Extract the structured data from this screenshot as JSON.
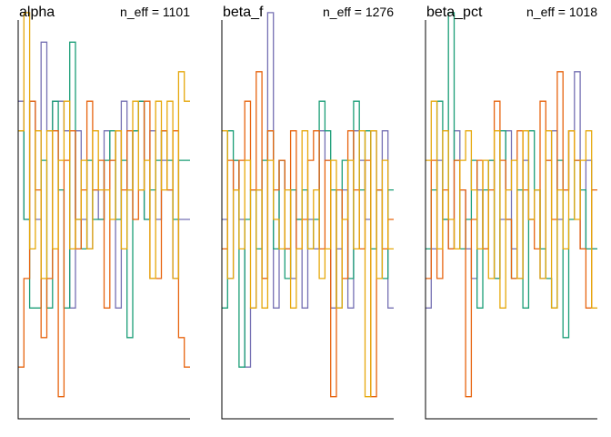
{
  "chart_data": [
    {
      "type": "line",
      "style": "step",
      "title": "alpha",
      "annotation": "n_eff = 1101",
      "xlim": [
        0.5,
        30.5
      ],
      "ylim": [
        -1.35,
        1.35
      ],
      "x": [
        1,
        2,
        3,
        4,
        5,
        6,
        7,
        8,
        9,
        10,
        11,
        12,
        13,
        14,
        15,
        16,
        17,
        18,
        19,
        20,
        21,
        22,
        23,
        24,
        25,
        26,
        27,
        28,
        29,
        30
      ],
      "series": [
        {
          "color": "#7570b3",
          "values": [
            0.8,
            0.0,
            0.8,
            0.0,
            1.2,
            0.6,
            0.8,
            0.8,
            0.6,
            -0.6,
            0.6,
            0.0,
            -0.2,
            0.2,
            0.0,
            0.6,
            0.4,
            -0.6,
            0.8,
            0.2,
            0.6,
            0.8,
            0.0,
            0.6,
            0.0,
            0.4,
            0.2,
            -0.4,
            0.0,
            0.0
          ]
        },
        {
          "color": "#1b9e77",
          "values": [
            0.6,
            0.0,
            -0.6,
            -0.6,
            0.4,
            -0.6,
            0.8,
            0.2,
            -0.6,
            1.2,
            0.0,
            -0.2,
            0.4,
            0.0,
            0.0,
            0.4,
            0.6,
            0.0,
            0.4,
            -0.8,
            0.6,
            0.8,
            0.0,
            0.2,
            0.4,
            0.6,
            0.4,
            0.0,
            0.4,
            0.4
          ]
        },
        {
          "color": "#e7640f",
          "values": [
            -1.0,
            -0.4,
            0.8,
            0.2,
            -0.8,
            -0.4,
            0.6,
            -1.2,
            0.4,
            0.6,
            -0.2,
            0.2,
            0.8,
            0.2,
            0.4,
            -0.6,
            0.4,
            0.6,
            0.2,
            0.6,
            0.0,
            0.2,
            0.8,
            -0.4,
            -0.4,
            0.6,
            0.2,
            0.6,
            -0.8,
            -1.0
          ]
        },
        {
          "color": "#e6a80c",
          "values": [
            0.6,
            1.4,
            -0.2,
            0.6,
            -0.4,
            0.6,
            -0.2,
            0.4,
            0.8,
            -0.2,
            0.0,
            0.4,
            -0.2,
            0.6,
            0.2,
            0.2,
            0.0,
            0.6,
            -0.2,
            0.2,
            0.8,
            0.2,
            0.4,
            -0.4,
            0.8,
            0.2,
            0.8,
            -0.4,
            1.0,
            0.8
          ]
        }
      ]
    },
    {
      "type": "line",
      "style": "step",
      "title": "beta_f",
      "annotation": "n_eff = 1276",
      "xlim": [
        0.5,
        30.5
      ],
      "ylim": [
        -1.35,
        1.35
      ],
      "x": [
        1,
        2,
        3,
        4,
        5,
        6,
        7,
        8,
        9,
        10,
        11,
        12,
        13,
        14,
        15,
        16,
        17,
        18,
        19,
        20,
        21,
        22,
        23,
        24,
        25,
        26,
        27,
        28,
        29,
        30
      ],
      "series": [
        {
          "color": "#7570b3",
          "values": [
            0.0,
            -0.4,
            0.4,
            0.0,
            -1.0,
            -0.6,
            0.2,
            -0.4,
            1.4,
            -0.6,
            0.4,
            -0.2,
            -0.4,
            0.0,
            -0.6,
            0.0,
            -0.2,
            0.6,
            0.4,
            -0.6,
            -0.2,
            0.2,
            -0.6,
            0.6,
            0.4,
            0.0,
            0.6,
            0.2,
            0.6,
            -0.6
          ]
        },
        {
          "color": "#1b9e77",
          "values": [
            -0.6,
            0.6,
            0.4,
            -1.0,
            0.0,
            0.2,
            -0.2,
            0.4,
            0.6,
            -0.2,
            0.4,
            -0.4,
            0.2,
            0.0,
            0.2,
            -0.2,
            0.0,
            0.8,
            0.6,
            0.2,
            -0.6,
            0.4,
            -0.4,
            0.8,
            0.2,
            0.6,
            -0.2,
            0.2,
            -0.4,
            0.2
          ]
        },
        {
          "color": "#e7640f",
          "values": [
            -0.2,
            0.4,
            0.2,
            0.4,
            0.8,
            0.2,
            1.0,
            -0.4,
            0.6,
            0.2,
            0.4,
            -0.2,
            0.6,
            -0.2,
            0.0,
            0.4,
            0.6,
            -0.2,
            0.4,
            -1.2,
            0.2,
            -0.4,
            0.6,
            0.2,
            -0.2,
            0.4,
            -1.2,
            0.2,
            -0.2,
            0.0
          ]
        },
        {
          "color": "#e6a80c",
          "values": [
            0.6,
            -0.4,
            0.2,
            -0.2,
            0.4,
            -0.6,
            0.2,
            -0.6,
            0.4,
            0.0,
            -0.2,
            0.2,
            -0.6,
            -0.2,
            0.6,
            -0.2,
            0.2,
            -0.4,
            -0.2,
            0.4,
            -0.6,
            0.0,
            0.4,
            -0.2,
            0.6,
            -1.2,
            0.6,
            -0.4,
            0.4,
            -0.2
          ]
        }
      ]
    },
    {
      "type": "line",
      "style": "step",
      "title": "beta_pct",
      "annotation": "n_eff = 1018",
      "xlim": [
        0.5,
        30.5
      ],
      "ylim": [
        -1.35,
        1.35
      ],
      "x": [
        1,
        2,
        3,
        4,
        5,
        6,
        7,
        8,
        9,
        10,
        11,
        12,
        13,
        14,
        15,
        16,
        17,
        18,
        19,
        20,
        21,
        22,
        23,
        24,
        25,
        26,
        27,
        28,
        29,
        30
      ],
      "series": [
        {
          "color": "#7570b3",
          "values": [
            -0.6,
            -0.2,
            0.4,
            0.0,
            -0.2,
            0.6,
            0.2,
            -0.2,
            -0.4,
            0.2,
            -0.2,
            0.4,
            -0.4,
            0.0,
            0.6,
            -0.2,
            -0.4,
            0.4,
            0.0,
            0.2,
            -0.4,
            0.4,
            0.6,
            0.0,
            0.2,
            0.6,
            1.0,
            -0.2,
            0.4,
            -0.2
          ]
        },
        {
          "color": "#1b9e77",
          "values": [
            -0.2,
            0.2,
            0.8,
            0.0,
            1.4,
            0.4,
            -0.2,
            0.0,
            0.4,
            -0.6,
            0.2,
            0.4,
            -0.4,
            0.6,
            0.0,
            -0.4,
            0.2,
            -0.6,
            0.6,
            0.2,
            -0.2,
            -0.4,
            -0.6,
            0.4,
            -0.8,
            0.0,
            0.4,
            0.2,
            -0.2,
            -0.2
          ]
        },
        {
          "color": "#e7640f",
          "values": [
            -0.4,
            0.4,
            -0.4,
            0.2,
            -0.2,
            0.4,
            0.2,
            -1.2,
            0.0,
            0.4,
            -0.2,
            0.2,
            0.8,
            0.4,
            0.0,
            -0.4,
            0.6,
            0.2,
            0.0,
            -0.2,
            0.8,
            0.4,
            0.0,
            1.0,
            0.2,
            0.6,
            0.4,
            -0.2,
            -0.6,
            0.2
          ]
        },
        {
          "color": "#e6a80c",
          "values": [
            0.4,
            0.8,
            -0.2,
            0.6,
            0.0,
            -0.2,
            0.4,
            0.6,
            0.2,
            -0.2,
            0.4,
            -0.4,
            0.6,
            -0.6,
            0.2,
            0.4,
            -0.4,
            0.6,
            0.0,
            0.2,
            -0.4,
            0.6,
            -0.6,
            0.2,
            -0.2,
            0.6,
            0.0,
            0.4,
            0.6,
            -0.6
          ]
        }
      ]
    }
  ]
}
